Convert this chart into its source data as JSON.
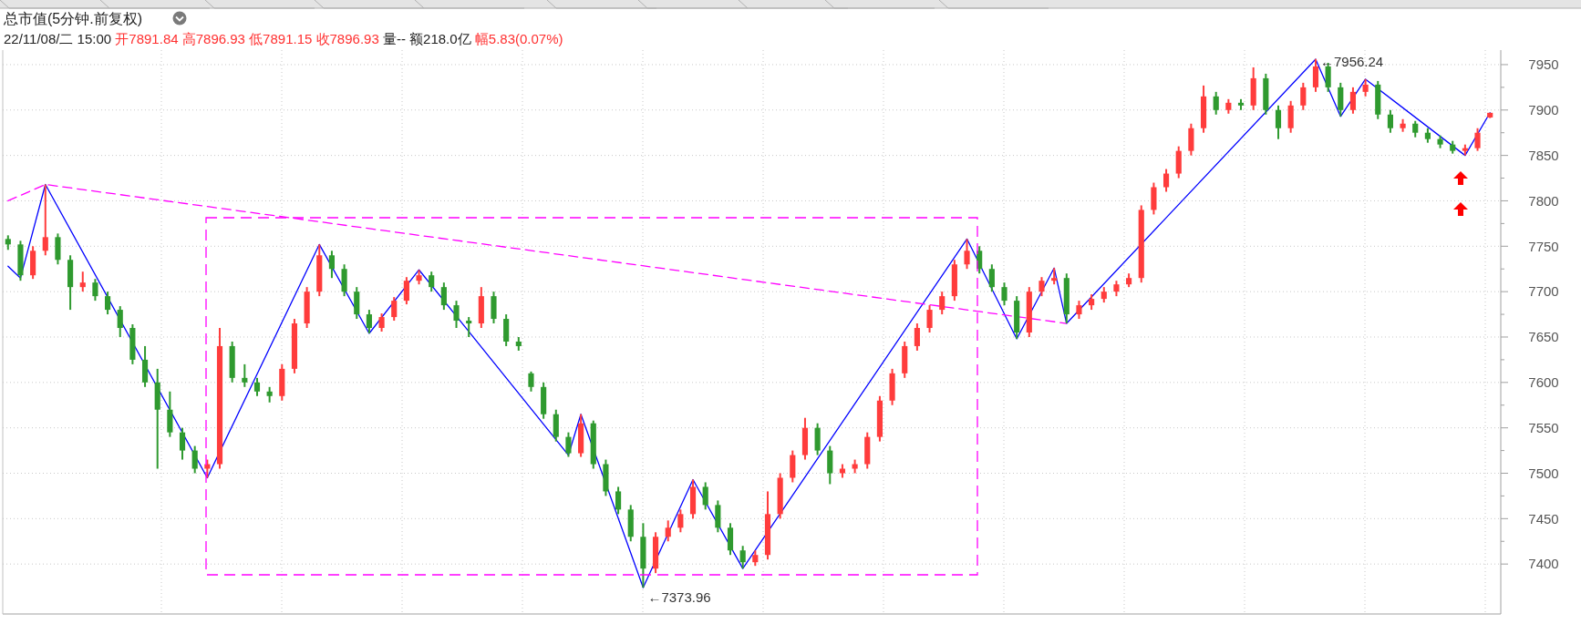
{
  "chart_data": {
    "type": "candlestick",
    "title": "总市值(5分钟.前复权)",
    "subtitle": "22/11/08/二 15:00 开7891.84 高7896.93 低7891.15 收7896.93 量-- 额218.0亿 幅5.83(0.07%)",
    "categories": [
      null,
      null,
      null,
      null,
      null,
      null,
      null,
      null,
      null,
      null,
      null,
      null,
      null,
      null,
      null,
      null,
      null,
      null,
      null,
      null,
      null,
      null,
      null,
      null,
      null,
      null,
      null,
      null,
      null,
      null,
      null,
      null,
      null,
      null,
      null,
      null,
      null,
      null,
      null,
      null,
      null,
      null,
      null,
      null,
      null,
      null,
      null,
      null,
      null,
      null,
      null,
      null,
      null,
      null,
      null,
      null,
      null,
      null,
      null,
      null,
      null,
      null,
      null,
      null,
      null,
      null,
      null,
      null,
      null,
      null,
      null,
      null,
      null,
      null,
      null,
      null,
      null,
      null,
      null,
      null,
      null,
      null,
      null,
      null,
      null,
      null,
      null,
      null,
      null,
      null,
      null,
      null,
      null,
      null,
      null,
      null,
      null,
      null,
      null,
      null,
      null,
      null,
      null,
      null,
      null,
      null,
      null,
      null,
      null,
      null,
      null,
      null,
      null,
      null,
      null,
      null,
      null,
      null,
      null,
      null
    ],
    "ohlc": [
      [
        7758,
        7762,
        7746,
        7752
      ],
      [
        7752,
        7756,
        7712,
        7718
      ],
      [
        7718,
        7750,
        7714,
        7745
      ],
      [
        7745,
        7818,
        7740,
        7760
      ],
      [
        7760,
        7764,
        7730,
        7735
      ],
      [
        7735,
        7740,
        7680,
        7705
      ],
      [
        7705,
        7722,
        7700,
        7710
      ],
      [
        7710,
        7714,
        7690,
        7695
      ],
      [
        7695,
        7700,
        7675,
        7680
      ],
      [
        7680,
        7684,
        7650,
        7660
      ],
      [
        7660,
        7664,
        7620,
        7625
      ],
      [
        7625,
        7640,
        7595,
        7600
      ],
      [
        7600,
        7615,
        7505,
        7570
      ],
      [
        7570,
        7590,
        7540,
        7545
      ],
      [
        7545,
        7550,
        7515,
        7525
      ],
      [
        7525,
        7530,
        7500,
        7505
      ],
      [
        7505,
        7515,
        7495,
        7510
      ],
      [
        7510,
        7660,
        7505,
        7640
      ],
      [
        7640,
        7645,
        7600,
        7605
      ],
      [
        7605,
        7620,
        7595,
        7600
      ],
      [
        7600,
        7605,
        7585,
        7590
      ],
      [
        7590,
        7595,
        7578,
        7585
      ],
      [
        7585,
        7620,
        7580,
        7615
      ],
      [
        7615,
        7670,
        7610,
        7665
      ],
      [
        7665,
        7705,
        7660,
        7700
      ],
      [
        7700,
        7752,
        7695,
        7740
      ],
      [
        7740,
        7745,
        7715,
        7725
      ],
      [
        7725,
        7730,
        7695,
        7700
      ],
      [
        7700,
        7705,
        7670,
        7675
      ],
      [
        7675,
        7680,
        7654,
        7660
      ],
      [
        7660,
        7676,
        7656,
        7672
      ],
      [
        7672,
        7694,
        7668,
        7690
      ],
      [
        7690,
        7716,
        7686,
        7712
      ],
      [
        7712,
        7724,
        7708,
        7718
      ],
      [
        7718,
        7722,
        7700,
        7705
      ],
      [
        7705,
        7710,
        7680,
        7685
      ],
      [
        7685,
        7690,
        7660,
        7668
      ],
      [
        7668,
        7672,
        7650,
        7665
      ],
      [
        7665,
        7705,
        7660,
        7695
      ],
      [
        7695,
        7700,
        7665,
        7670
      ],
      [
        7670,
        7675,
        7640,
        7645
      ],
      [
        7645,
        7650,
        7635,
        7640
      ],
      [
        7610,
        7612,
        7590,
        7595
      ],
      [
        7595,
        7600,
        7560,
        7565
      ],
      [
        7565,
        7570,
        7535,
        7540
      ],
      [
        7540,
        7545,
        7518,
        7522
      ],
      [
        7522,
        7565,
        7518,
        7555
      ],
      [
        7555,
        7558,
        7505,
        7510
      ],
      [
        7510,
        7515,
        7475,
        7480
      ],
      [
        7480,
        7485,
        7455,
        7460
      ],
      [
        7460,
        7465,
        7425,
        7430
      ],
      [
        7430,
        7445,
        7373.96,
        7395
      ],
      [
        7395,
        7435,
        7390,
        7430
      ],
      [
        7430,
        7448,
        7425,
        7440
      ],
      [
        7440,
        7460,
        7435,
        7455
      ],
      [
        7455,
        7493,
        7450,
        7485
      ],
      [
        7485,
        7490,
        7460,
        7465
      ],
      [
        7465,
        7470,
        7435,
        7440
      ],
      [
        7440,
        7445,
        7410,
        7415
      ],
      [
        7415,
        7420,
        7395,
        7402
      ],
      [
        7402,
        7415,
        7398,
        7410
      ],
      [
        7410,
        7480,
        7405,
        7455
      ],
      [
        7455,
        7500,
        7450,
        7495
      ],
      [
        7495,
        7525,
        7490,
        7520
      ],
      [
        7520,
        7561,
        7515,
        7550
      ],
      [
        7550,
        7555,
        7520,
        7525
      ],
      [
        7525,
        7530,
        7488,
        7500
      ],
      [
        7500,
        7510,
        7495,
        7505
      ],
      [
        7505,
        7515,
        7500,
        7510
      ],
      [
        7510,
        7545,
        7505,
        7540
      ],
      [
        7540,
        7585,
        7535,
        7580
      ],
      [
        7580,
        7615,
        7575,
        7610
      ],
      [
        7610,
        7645,
        7605,
        7640
      ],
      [
        7640,
        7665,
        7635,
        7660
      ],
      [
        7660,
        7685,
        7655,
        7680
      ],
      [
        7680,
        7700,
        7675,
        7695
      ],
      [
        7695,
        7735,
        7690,
        7730
      ],
      [
        7730,
        7758,
        7725,
        7745
      ],
      [
        7745,
        7750,
        7720,
        7725
      ],
      [
        7725,
        7730,
        7700,
        7705
      ],
      [
        7705,
        7710,
        7685,
        7690
      ],
      [
        7690,
        7695,
        7648,
        7655
      ],
      [
        7655,
        7705,
        7650,
        7700
      ],
      [
        7700,
        7716,
        7695,
        7712
      ],
      [
        7712,
        7726,
        7708,
        7715
      ],
      [
        7715,
        7720,
        7665,
        7675
      ],
      [
        7675,
        7690,
        7670,
        7685
      ],
      [
        7685,
        7697,
        7680,
        7692
      ],
      [
        7692,
        7705,
        7688,
        7700
      ],
      [
        7700,
        7712,
        7695,
        7708
      ],
      [
        7708,
        7720,
        7705,
        7715
      ],
      [
        7715,
        7795,
        7710,
        7790
      ],
      [
        7790,
        7820,
        7785,
        7815
      ],
      [
        7815,
        7835,
        7810,
        7830
      ],
      [
        7830,
        7860,
        7825,
        7855
      ],
      [
        7855,
        7885,
        7850,
        7880
      ],
      [
        7880,
        7927,
        7875,
        7915
      ],
      [
        7915,
        7920,
        7895,
        7900
      ],
      [
        7900,
        7912,
        7896,
        7908
      ],
      [
        7908,
        7912,
        7900,
        7905
      ],
      [
        7905,
        7947,
        7900,
        7935
      ],
      [
        7935,
        7940,
        7895,
        7900
      ],
      [
        7900,
        7905,
        7868,
        7880
      ],
      [
        7880,
        7910,
        7875,
        7905
      ],
      [
        7905,
        7930,
        7900,
        7925
      ],
      [
        7925,
        7956.24,
        7920,
        7948
      ],
      [
        7948,
        7952,
        7920,
        7925
      ],
      [
        7925,
        7930,
        7893,
        7900
      ],
      [
        7900,
        7925,
        7896,
        7920
      ],
      [
        7920,
        7934,
        7915,
        7928
      ],
      [
        7928,
        7932,
        7890,
        7895
      ],
      [
        7895,
        7900,
        7875,
        7880
      ],
      [
        7880,
        7890,
        7876,
        7885
      ],
      [
        7885,
        7888,
        7870,
        7875
      ],
      [
        7875,
        7880,
        7864,
        7868
      ],
      [
        7868,
        7872,
        7858,
        7862
      ],
      [
        7862,
        7866,
        7852,
        7855
      ],
      [
        7855,
        7862,
        7850,
        7858
      ],
      [
        7858,
        7880,
        7855,
        7875
      ],
      [
        7891.84,
        7896.93,
        7891.15,
        7896.93
      ]
    ],
    "colors": [
      "#2f9a2f",
      "#2f9a2f",
      "#ff3c3c",
      "#ff3c3c",
      "#2f9a2f",
      "#2f9a2f",
      "#ff3c3c",
      "#2f9a2f",
      "#2f9a2f",
      "#2f9a2f",
      "#2f9a2f",
      "#2f9a2f",
      "#2f9a2f",
      "#2f9a2f",
      "#2f9a2f",
      "#2f9a2f",
      "#ff3c3c",
      "#ff3c3c",
      "#2f9a2f",
      "#2f9a2f",
      "#2f9a2f",
      "#2f9a2f",
      "#ff3c3c",
      "#ff3c3c",
      "#ff3c3c",
      "#ff3c3c",
      "#2f9a2f",
      "#2f9a2f",
      "#2f9a2f",
      "#2f9a2f",
      "#ff3c3c",
      "#ff3c3c",
      "#ff3c3c",
      "#ff3c3c",
      "#2f9a2f",
      "#2f9a2f",
      "#2f9a2f",
      "#2f9a2f",
      "#ff3c3c",
      "#2f9a2f",
      "#2f9a2f",
      "#2f9a2f",
      "#2f9a2f",
      "#2f9a2f",
      "#2f9a2f",
      "#2f9a2f",
      "#ff3c3c",
      "#2f9a2f",
      "#2f9a2f",
      "#2f9a2f",
      "#2f9a2f",
      "#2f9a2f",
      "#ff3c3c",
      "#ff3c3c",
      "#ff3c3c",
      "#ff3c3c",
      "#2f9a2f",
      "#2f9a2f",
      "#2f9a2f",
      "#2f9a2f",
      "#ff3c3c",
      "#ff3c3c",
      "#ff3c3c",
      "#ff3c3c",
      "#ff3c3c",
      "#2f9a2f",
      "#2f9a2f",
      "#ff3c3c",
      "#ff3c3c",
      "#ff3c3c",
      "#ff3c3c",
      "#ff3c3c",
      "#ff3c3c",
      "#ff3c3c",
      "#ff3c3c",
      "#ff3c3c",
      "#ff3c3c",
      "#ff3c3c",
      "#2f9a2f",
      "#2f9a2f",
      "#2f9a2f",
      "#2f9a2f",
      "#ff3c3c",
      "#ff3c3c",
      "#ff3c3c",
      "#2f9a2f",
      "#ff3c3c",
      "#ff3c3c",
      "#ff3c3c",
      "#ff3c3c",
      "#ff3c3c",
      "#ff3c3c",
      "#ff3c3c",
      "#ff3c3c",
      "#ff3c3c",
      "#ff3c3c",
      "#ff3c3c",
      "#2f9a2f",
      "#ff3c3c",
      "#2f9a2f",
      "#ff3c3c",
      "#2f9a2f",
      "#2f9a2f",
      "#ff3c3c",
      "#ff3c3c",
      "#ff3c3c",
      "#2f9a2f",
      "#2f9a2f",
      "#ff3c3c",
      "#ff3c3c",
      "#2f9a2f",
      "#2f9a2f",
      "#ff3c3c",
      "#2f9a2f",
      "#2f9a2f",
      "#2f9a2f",
      "#2f9a2f",
      "#ff3c3c",
      "#ff3c3c",
      "#ff3c3c"
    ],
    "series": [
      {
        "type": "line",
        "color": "#0000ff",
        "line_style": "solid",
        "values": [
          7728,
          7715,
          null,
          7818,
          null,
          null,
          null,
          null,
          null,
          null,
          null,
          null,
          null,
          null,
          null,
          null,
          7495,
          null,
          null,
          null,
          null,
          null,
          null,
          null,
          null,
          7752,
          null,
          null,
          null,
          7654,
          null,
          null,
          null,
          7724,
          null,
          null,
          null,
          null,
          null,
          null,
          null,
          null,
          null,
          null,
          null,
          7520,
          7565,
          null,
          null,
          null,
          null,
          7374,
          null,
          null,
          null,
          7493,
          null,
          null,
          null,
          7395,
          null,
          null,
          null,
          null,
          null,
          null,
          null,
          null,
          null,
          null,
          null,
          null,
          null,
          null,
          null,
          null,
          null,
          7758,
          null,
          null,
          null,
          7648,
          null,
          null,
          7726,
          7665,
          null,
          null,
          null,
          null,
          null,
          null,
          null,
          null,
          null,
          null,
          null,
          null,
          null,
          null,
          null,
          null,
          null,
          null,
          null,
          7956,
          null,
          7893,
          null,
          7934,
          null,
          null,
          null,
          null,
          null,
          null,
          null,
          7850,
          null,
          7897
        ]
      },
      {
        "type": "line",
        "color": "#ff00ff",
        "line_style": "dashed",
        "values": [
          7800,
          null,
          null,
          7818,
          null,
          null,
          null,
          null,
          null,
          null,
          null,
          null,
          null,
          null,
          null,
          null,
          null,
          null,
          null,
          null,
          null,
          null,
          null,
          null,
          null,
          null,
          null,
          null,
          null,
          null,
          null,
          null,
          null,
          null,
          null,
          null,
          null,
          null,
          null,
          null,
          null,
          null,
          null,
          null,
          null,
          null,
          null,
          null,
          null,
          null,
          null,
          null,
          null,
          null,
          null,
          null,
          null,
          null,
          null,
          null,
          null,
          null,
          null,
          null,
          null,
          null,
          null,
          null,
          null,
          null,
          null,
          null,
          null,
          null,
          null,
          null,
          null,
          null,
          null,
          null,
          null,
          null,
          null,
          null,
          null,
          7665,
          null,
          null,
          null,
          null,
          null,
          null,
          null,
          null,
          null,
          null,
          null,
          null,
          null,
          null,
          null,
          null,
          null,
          null,
          null,
          null,
          null,
          null,
          null,
          null,
          null,
          null,
          null,
          null,
          null,
          null,
          null,
          null,
          null,
          null
        ]
      }
    ],
    "annotations": [
      "←7956.24",
      "←7373.96"
    ],
    "ylim": [
      7345,
      7966
    ],
    "yticks": [
      7400,
      {
        "value": 7425,
        "label": null
      },
      7450,
      {
        "value": 7475,
        "label": null
      },
      7500,
      {
        "value": 7525,
        "label": null
      },
      7550,
      {
        "value": 7575,
        "label": null
      },
      7600,
      {
        "value": 7625,
        "label": null
      },
      7650,
      {
        "value": 7675,
        "label": null
      },
      7700,
      {
        "value": 7725,
        "label": null
      },
      7750,
      {
        "value": 7775,
        "label": null
      },
      7800,
      {
        "value": 7825,
        "label": null
      },
      7850,
      {
        "value": 7875,
        "label": null
      },
      7900,
      {
        "value": 7925,
        "label": null
      },
      7950
    ],
    "grid": true,
    "tick_labels": "y"
  }
}
